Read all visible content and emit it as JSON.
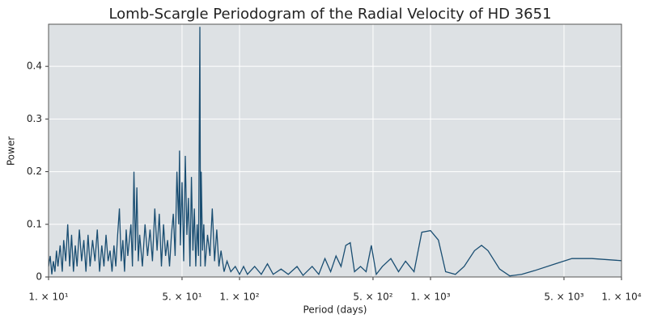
{
  "chart_data": {
    "type": "line",
    "title": "Lomb-Scargle Periodogram of the Radial Velocity of HD 3651",
    "x_label": "Period (days)",
    "y_label": "Power",
    "xscale": "log",
    "xlim": [
      10,
      10000
    ],
    "ylim": [
      0,
      0.48
    ],
    "xticks": [
      {
        "value": 10,
        "label": "1. × 10¹"
      },
      {
        "value": 50,
        "label": "5. × 10¹"
      },
      {
        "value": 100,
        "label": "1. × 10²"
      },
      {
        "value": 500,
        "label": "5. × 10²"
      },
      {
        "value": 1000,
        "label": "1. × 10³"
      },
      {
        "value": 5000,
        "label": "5. × 10³"
      },
      {
        "value": 10000,
        "label": "1. × 10⁴"
      }
    ],
    "yticks": [
      0,
      0.1,
      0.2,
      0.3,
      0.4
    ],
    "grid": true,
    "background": "#dde1e4",
    "series": [
      {
        "name": "Power",
        "color": "#1a4e72",
        "x": [
          10,
          10.2,
          10.4,
          10.6,
          10.8,
          11,
          11.2,
          11.5,
          11.8,
          12,
          12.3,
          12.6,
          12.9,
          13.2,
          13.5,
          13.8,
          14.1,
          14.5,
          14.9,
          15.3,
          15.7,
          16.1,
          16.5,
          17,
          17.5,
          18,
          18.5,
          19,
          19.5,
          20,
          20.5,
          21,
          21.5,
          22,
          22.5,
          23,
          23.5,
          24,
          24.5,
          25,
          25.5,
          26,
          27,
          27.5,
          28,
          28.5,
          29,
          29.5,
          30,
          31,
          32,
          33,
          34,
          35,
          36,
          37,
          38,
          39,
          40,
          41,
          42,
          43,
          44,
          45,
          46,
          47,
          48,
          48.5,
          49,
          50,
          51,
          52,
          53,
          54,
          55,
          56,
          57,
          58,
          59,
          60,
          61,
          62,
          62.5,
          63,
          64,
          65,
          66,
          68,
          70,
          72,
          74,
          76,
          78,
          80,
          83,
          86,
          90,
          95,
          100,
          105,
          110,
          120,
          130,
          140,
          150,
          165,
          180,
          200,
          215,
          240,
          260,
          280,
          300,
          320,
          340,
          360,
          380,
          400,
          430,
          460,
          490,
          520,
          560,
          620,
          680,
          740,
          820,
          900,
          1000,
          1100,
          1200,
          1350,
          1500,
          1700,
          1850,
          2000,
          2300,
          2600,
          3000,
          3500,
          4500,
          5500,
          7000,
          10000
        ],
        "values": [
          0.02,
          0.04,
          0.005,
          0.03,
          0.01,
          0.05,
          0.02,
          0.06,
          0.01,
          0.07,
          0.03,
          0.1,
          0.02,
          0.08,
          0.01,
          0.06,
          0.02,
          0.09,
          0.03,
          0.07,
          0.01,
          0.08,
          0.02,
          0.07,
          0.03,
          0.09,
          0.01,
          0.06,
          0.02,
          0.08,
          0.03,
          0.05,
          0.01,
          0.06,
          0.02,
          0.08,
          0.13,
          0.03,
          0.07,
          0.01,
          0.09,
          0.04,
          0.1,
          0.02,
          0.2,
          0.05,
          0.17,
          0.03,
          0.08,
          0.02,
          0.1,
          0.04,
          0.09,
          0.03,
          0.13,
          0.05,
          0.12,
          0.02,
          0.1,
          0.04,
          0.07,
          0.02,
          0.08,
          0.12,
          0.04,
          0.2,
          0.1,
          0.24,
          0.06,
          0.18,
          0.03,
          0.23,
          0.08,
          0.15,
          0.02,
          0.19,
          0.05,
          0.13,
          0.02,
          0.1,
          0.04,
          0.475,
          0.02,
          0.2,
          0.05,
          0.1,
          0.02,
          0.08,
          0.04,
          0.13,
          0.03,
          0.09,
          0.02,
          0.05,
          0.01,
          0.03,
          0.01,
          0.02,
          0.005,
          0.02,
          0.005,
          0.02,
          0.005,
          0.025,
          0.005,
          0.015,
          0.005,
          0.02,
          0.003,
          0.02,
          0.005,
          0.035,
          0.01,
          0.04,
          0.02,
          0.06,
          0.065,
          0.01,
          0.02,
          0.01,
          0.06,
          0.005,
          0.02,
          0.035,
          0.01,
          0.03,
          0.01,
          0.085,
          0.088,
          0.07,
          0.01,
          0.005,
          0.02,
          0.05,
          0.06,
          0.05,
          0.015,
          0.002,
          0.005,
          0.012,
          0.025,
          0.035,
          0.035,
          0.031
        ]
      }
    ]
  }
}
